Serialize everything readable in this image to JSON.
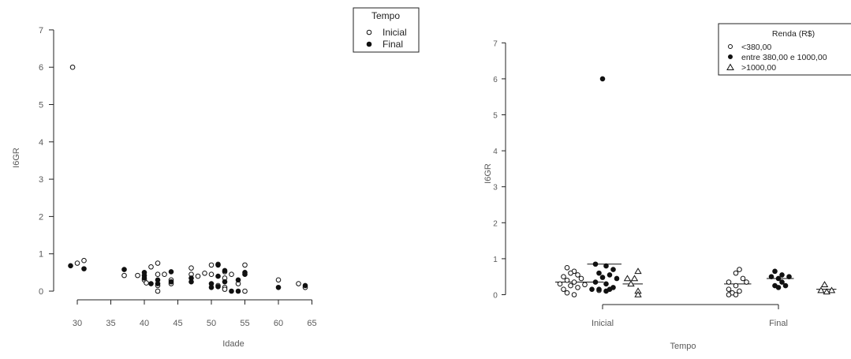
{
  "chart_data": [
    {
      "type": "scatter",
      "xlabel": "Idade",
      "ylabel": "I6GR",
      "xlim": [
        29,
        65
      ],
      "ylim": [
        0,
        7
      ],
      "x_ticks": [
        "30",
        "35",
        "40",
        "45",
        "50",
        "55",
        "60",
        "65"
      ],
      "y_ticks": [
        "0",
        "1",
        "2",
        "3",
        "4",
        "5",
        "6",
        "7"
      ],
      "legend": {
        "title": "Tempo",
        "position": "top-right",
        "entries": [
          "Inicial",
          "Final"
        ]
      },
      "series": [
        {
          "name": "Inicial",
          "marker": "open-circle",
          "points": [
            [
              29.3,
              6.0
            ],
            [
              30,
              0.75
            ],
            [
              31,
              0.82
            ],
            [
              37,
              0.42
            ],
            [
              39,
              0.42
            ],
            [
              40,
              0.3
            ],
            [
              40.3,
              0.22
            ],
            [
              41,
              0.65
            ],
            [
              42,
              0.75
            ],
            [
              42,
              0.45
            ],
            [
              42,
              0.15
            ],
            [
              42,
              0.0
            ],
            [
              43,
              0.45
            ],
            [
              44,
              0.3
            ],
            [
              44,
              0.2
            ],
            [
              47,
              0.62
            ],
            [
              47,
              0.45
            ],
            [
              48,
              0.4
            ],
            [
              49,
              0.48
            ],
            [
              50,
              0.7
            ],
            [
              50,
              0.45
            ],
            [
              51,
              0.72
            ],
            [
              51,
              0.15
            ],
            [
              52,
              0.52
            ],
            [
              52,
              0.35
            ],
            [
              52,
              0.1
            ],
            [
              52,
              0.05
            ],
            [
              53,
              0.45
            ],
            [
              54,
              0.2
            ],
            [
              55,
              0.7
            ],
            [
              55,
              0.0
            ],
            [
              60,
              0.3
            ],
            [
              63,
              0.2
            ],
            [
              64,
              0.1
            ]
          ]
        },
        {
          "name": "Final",
          "marker": "filled-circle",
          "points": [
            [
              29,
              0.68
            ],
            [
              31,
              0.6
            ],
            [
              37,
              0.58
            ],
            [
              40,
              0.5
            ],
            [
              40,
              0.42
            ],
            [
              40,
              0.35
            ],
            [
              41,
              0.2
            ],
            [
              42,
              0.3
            ],
            [
              42,
              0.2
            ],
            [
              44,
              0.52
            ],
            [
              44,
              0.25
            ],
            [
              47,
              0.35
            ],
            [
              47,
              0.25
            ],
            [
              50,
              0.2
            ],
            [
              50,
              0.1
            ],
            [
              51,
              0.7
            ],
            [
              51,
              0.4
            ],
            [
              51,
              0.12
            ],
            [
              52,
              0.55
            ],
            [
              52,
              0.25
            ],
            [
              53,
              0.0
            ],
            [
              54,
              0.3
            ],
            [
              54,
              0.0
            ],
            [
              55,
              0.5
            ],
            [
              55,
              0.45
            ],
            [
              60,
              0.1
            ],
            [
              64,
              0.15
            ]
          ]
        }
      ]
    },
    {
      "type": "scatter",
      "xlabel": "Tempo",
      "ylabel": "I6GR",
      "ylim": [
        0,
        7
      ],
      "y_ticks": [
        "0",
        "1",
        "2",
        "3",
        "4",
        "5",
        "6",
        "7"
      ],
      "categories": [
        "Inicial",
        "Final"
      ],
      "legend": {
        "title": "Renda (R$)",
        "position": "top-right",
        "entries": [
          "<380,00",
          "entre 380,00 e 1000,00",
          ">1000,00"
        ]
      },
      "groups": [
        {
          "series": "<380,00",
          "tempo": "Inicial",
          "marker": "open-circle",
          "median": 0.35,
          "points": [
            [
              -0.5,
              0.75
            ],
            [
              -0.4,
              0.65
            ],
            [
              -0.45,
              0.6
            ],
            [
              -0.35,
              0.55
            ],
            [
              -0.55,
              0.5
            ],
            [
              -0.3,
              0.45
            ],
            [
              -0.5,
              0.4
            ],
            [
              -0.4,
              0.35
            ],
            [
              -0.6,
              0.3
            ],
            [
              -0.25,
              0.28
            ],
            [
              -0.45,
              0.25
            ],
            [
              -0.35,
              0.2
            ],
            [
              -0.55,
              0.15
            ],
            [
              -0.05,
              0.12
            ],
            [
              -0.5,
              0.05
            ],
            [
              -0.4,
              0.0
            ]
          ]
        },
        {
          "series": "entre 380,00 e 1000,00",
          "tempo": "Inicial",
          "marker": "filled-circle",
          "median": 0.85,
          "points": [
            [
              0.0,
              6.0
            ],
            [
              -0.1,
              0.85
            ],
            [
              0.05,
              0.8
            ],
            [
              0.15,
              0.7
            ],
            [
              -0.05,
              0.6
            ],
            [
              0.1,
              0.55
            ],
            [
              0.0,
              0.48
            ],
            [
              0.2,
              0.45
            ],
            [
              -0.1,
              0.35
            ],
            [
              0.05,
              0.3
            ],
            [
              0.15,
              0.2
            ],
            [
              -0.05,
              0.15
            ],
            [
              0.1,
              0.15
            ],
            [
              -0.15,
              0.15
            ],
            [
              0.05,
              0.1
            ]
          ]
        },
        {
          "series": ">1000,00",
          "tempo": "Inicial",
          "marker": "open-triangle",
          "median": 0.3,
          "points": [
            [
              0.5,
              0.65
            ],
            [
              0.45,
              0.45
            ],
            [
              0.35,
              0.45
            ],
            [
              0.4,
              0.3
            ],
            [
              0.5,
              0.1
            ],
            [
              0.5,
              0.0
            ]
          ]
        },
        {
          "series": "<380,00",
          "tempo": "Final",
          "marker": "open-circle",
          "median": 0.3,
          "points": [
            [
              -0.55,
              0.7
            ],
            [
              -0.6,
              0.6
            ],
            [
              -0.5,
              0.45
            ],
            [
              -0.7,
              0.35
            ],
            [
              -0.45,
              0.35
            ],
            [
              -0.6,
              0.25
            ],
            [
              -0.7,
              0.15
            ],
            [
              -0.55,
              0.1
            ],
            [
              -0.65,
              0.05
            ],
            [
              -0.7,
              0.0
            ],
            [
              -0.6,
              0.0
            ]
          ]
        },
        {
          "series": "entre 380,00 e 1000,00",
          "tempo": "Final",
          "marker": "filled-circle",
          "median": 0.45,
          "points": [
            [
              -0.05,
              0.65
            ],
            [
              0.05,
              0.55
            ],
            [
              0.15,
              0.5
            ],
            [
              -0.1,
              0.5
            ],
            [
              0.0,
              0.45
            ],
            [
              0.05,
              0.35
            ],
            [
              -0.05,
              0.25
            ],
            [
              0.1,
              0.25
            ],
            [
              0.0,
              0.2
            ]
          ]
        },
        {
          "series": ">1000,00",
          "tempo": "Final",
          "marker": "open-triangle",
          "median": 0.15,
          "points": [
            [
              0.65,
              0.28
            ],
            [
              0.6,
              0.12
            ],
            [
              0.75,
              0.12
            ],
            [
              0.68,
              0.08
            ]
          ]
        }
      ]
    }
  ]
}
